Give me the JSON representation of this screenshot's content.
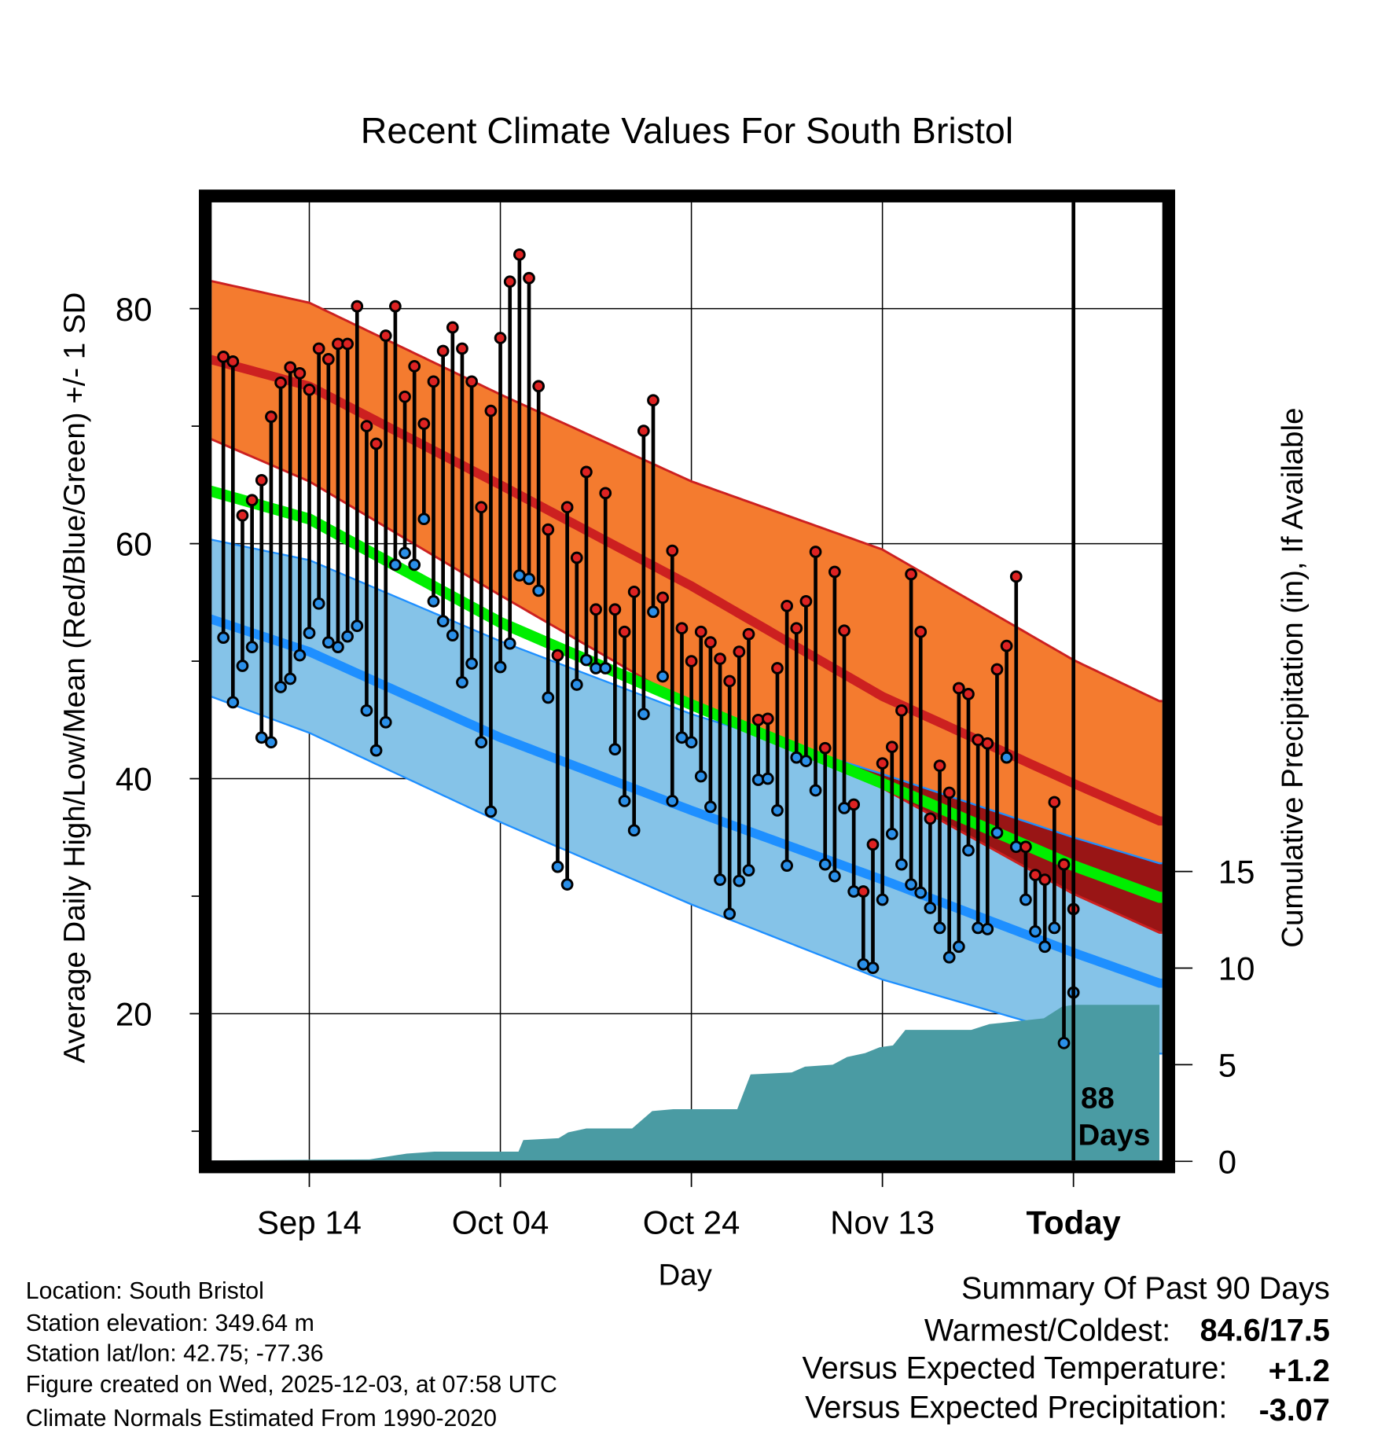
{
  "chart_data": {
    "type": "line",
    "title": "Recent Climate Values For South Bristol",
    "xlabel": "Day",
    "ylabel": "Average Daily High/Low/Mean (Red/Blue/Green) +/- 1 SD",
    "y2label": "Cumulative Precipitation (in), If Available",
    "xlim_days_relative_to_today": [
      -90,
      9
    ],
    "ylim": [
      8,
      89.5
    ],
    "y2lim": [
      0,
      50
    ],
    "yticks": [
      "20",
      "40",
      "60",
      "80"
    ],
    "y2ticks": [
      "0",
      "5",
      "10",
      "15"
    ],
    "xticks": [
      {
        "label": "Sep 14",
        "day": -80
      },
      {
        "label": "Oct 04",
        "day": -60
      },
      {
        "label": "Oct 24",
        "day": -40
      },
      {
        "label": "Nov 13",
        "day": -20
      },
      {
        "label": "Today",
        "day": 0
      }
    ],
    "today_annotation": [
      "88",
      "Days"
    ],
    "grid": true,
    "daily_high": [
      75.9,
      75.5,
      62.4,
      63.7,
      65.4,
      70.8,
      73.7,
      75.0,
      74.5,
      73.1,
      76.6,
      75.7,
      77.0,
      77.0,
      80.2,
      70.0,
      68.5,
      77.7,
      80.2,
      72.5,
      75.1,
      70.2,
      73.8,
      76.4,
      78.4,
      76.6,
      73.8,
      63.1,
      71.3,
      77.5,
      82.3,
      84.6,
      82.6,
      73.4,
      61.2,
      50.5,
      63.1,
      58.8,
      66.1,
      54.4,
      64.3,
      54.4,
      52.5,
      55.9,
      69.6,
      72.2,
      55.4,
      59.4,
      52.8,
      50.0,
      52.5,
      51.6,
      50.2,
      48.3,
      50.8,
      52.3,
      45.0,
      45.1,
      49.4,
      54.7,
      52.8,
      55.1,
      59.3,
      42.6,
      57.6,
      52.6,
      37.8,
      30.4,
      34.4,
      41.3,
      42.7,
      45.8,
      57.4,
      52.5,
      36.6,
      41.1,
      38.8,
      47.7,
      47.2,
      43.3,
      43.0,
      49.3,
      51.3,
      57.2,
      34.2,
      31.8,
      31.4,
      38.0,
      32.7,
      28.9
    ],
    "daily_low": [
      52.0,
      46.5,
      49.6,
      51.2,
      43.5,
      43.1,
      47.8,
      48.5,
      50.5,
      52.4,
      54.9,
      51.6,
      51.2,
      52.1,
      53.0,
      45.8,
      42.4,
      44.8,
      58.2,
      59.2,
      58.2,
      62.1,
      55.1,
      53.4,
      52.2,
      48.2,
      49.8,
      43.1,
      37.2,
      49.5,
      51.5,
      57.3,
      57.0,
      56.0,
      46.9,
      32.5,
      31.0,
      48.0,
      50.1,
      49.4,
      49.4,
      42.5,
      38.1,
      35.6,
      45.5,
      54.2,
      48.7,
      38.1,
      43.5,
      43.1,
      40.2,
      37.6,
      31.4,
      28.5,
      31.3,
      32.2,
      39.9,
      40.0,
      37.3,
      32.6,
      41.8,
      41.5,
      39.0,
      32.7,
      31.7,
      37.5,
      30.4,
      24.2,
      23.9,
      29.7,
      35.3,
      32.7,
      31.0,
      30.3,
      29.0,
      27.3,
      24.8,
      25.7,
      33.9,
      27.3,
      27.2,
      35.4,
      41.8,
      34.2,
      29.7,
      27.0,
      25.7,
      27.3,
      17.5,
      21.8
    ],
    "normals": {
      "days": [
        -90,
        -80,
        -60,
        -40,
        -20,
        0,
        9
      ],
      "high_plus_sd": [
        82.3,
        80.5,
        72.7,
        65.3,
        59.5,
        50.1,
        46.6
      ],
      "high_mean": [
        75.6,
        73.4,
        65.0,
        56.4,
        47.0,
        39.6,
        36.4
      ],
      "high_minus_sd": [
        68.8,
        65.3,
        55.6,
        46.2,
        39.2,
        30.2,
        26.9
      ],
      "daily_mean": [
        64.4,
        62.1,
        53.3,
        46.3,
        39.6,
        32.6,
        29.9
      ],
      "low_plus_sd": [
        60.3,
        58.6,
        51.7,
        45.5,
        40.4,
        35.0,
        32.8
      ],
      "low_mean": [
        53.5,
        50.8,
        43.5,
        37.3,
        31.4,
        25.2,
        22.6
      ],
      "low_minus_sd": [
        46.9,
        43.9,
        36.3,
        29.3,
        22.9,
        18.2,
        16.6
      ]
    },
    "cumulative_precip": {
      "days": [
        -90,
        -73.7,
        -69.8,
        -66.9,
        -58.1,
        -57.6,
        -53.9,
        -52.9,
        -51,
        -46.2,
        -44.1,
        -41.9,
        -35.2,
        -33.8,
        -29.5,
        -28.1,
        -25.2,
        -23.7,
        -21.8,
        -20.3,
        -18.9,
        -17.6,
        -10.7,
        -8.8,
        -6.9,
        -3.1,
        -1.2,
        0,
        9
      ],
      "values": [
        0.05,
        0.1,
        0.4,
        0.5,
        0.5,
        1.1,
        1.2,
        1.5,
        1.7,
        1.7,
        2.6,
        2.7,
        2.7,
        4.5,
        4.6,
        4.9,
        5.0,
        5.4,
        5.6,
        5.9,
        6.0,
        6.8,
        6.8,
        7.1,
        7.2,
        7.4,
        8.0,
        8.1,
        8.1
      ]
    }
  },
  "footer": {
    "location": "Location: South Bristol",
    "elevation": "Station elevation: 349.64 m",
    "latlon": "Station lat/lon: 42.75; -77.36",
    "created": "Figure created on Wed, 2025-12-03, at 07:58 UTC",
    "normals": "Climate Normals Estimated From 1990-2020"
  },
  "summary": {
    "heading": "Summary Of Past 90 Days",
    "warmest_label": "Warmest/Coldest:",
    "warmest_value": "84.6/17.5",
    "temp_label": "Versus Expected Temperature:",
    "temp_value": "+1.2",
    "precip_label": "Versus Expected Precipitation:",
    "precip_value": "-3.07"
  },
  "colors": {
    "high_band": "#F47B2F",
    "high_line": "#CC2020",
    "overlap": "#991515",
    "mean_line": "#00EE00",
    "low_band": "#85C3E8",
    "low_line": "#1E8FFF",
    "precip": "#4A9BA3",
    "temp_anomaly": "#CC2222",
    "precip_anomaly": "#A0522D"
  }
}
